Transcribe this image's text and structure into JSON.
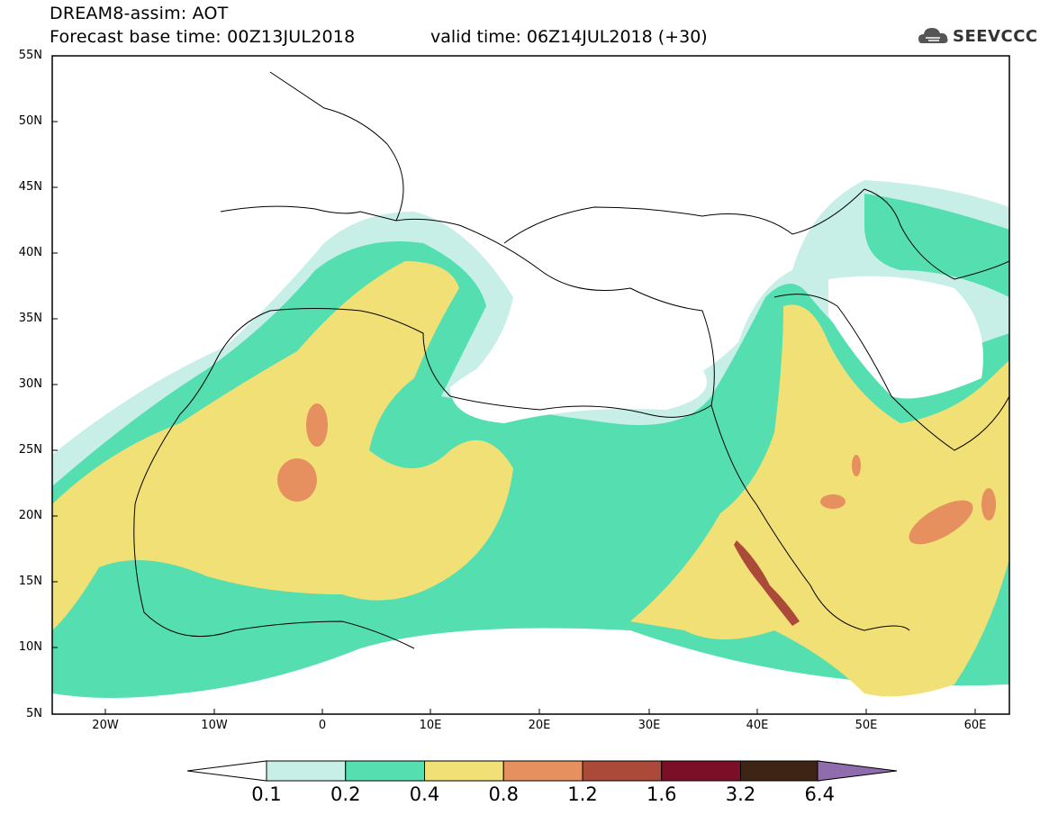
{
  "header": {
    "title": "DREAM8-assim: AOT",
    "base_time": "Forecast base time: 00Z13JUL2018",
    "valid_time": "valid time: 06Z14JUL2018 (+30)",
    "logo_text": "SEEVCCC"
  },
  "map": {
    "extent": {
      "lon": [
        -25,
        65
      ],
      "lat": [
        5,
        55
      ]
    },
    "lat_ticks": [
      "55N",
      "50N",
      "45N",
      "40N",
      "35N",
      "30N",
      "25N",
      "20N",
      "15N",
      "10N",
      "5N"
    ],
    "lon_ticks": [
      "20W",
      "10W",
      "0",
      "10E",
      "20E",
      "30E",
      "40E",
      "50E",
      "60E"
    ],
    "field": "Aerosol optical thickness"
  },
  "colorbar": {
    "labels": [
      "0.1",
      "0.2",
      "0.4",
      "0.8",
      "1.2",
      "1.6",
      "3.2",
      "6.4"
    ],
    "colors": [
      "#c7efe8",
      "#55dfb0",
      "#f1e075",
      "#e68f5f",
      "#ac4a3a",
      "#7b0f27",
      "#3e2414",
      "#8f6cab"
    ],
    "under_color": "#ffffff"
  }
}
